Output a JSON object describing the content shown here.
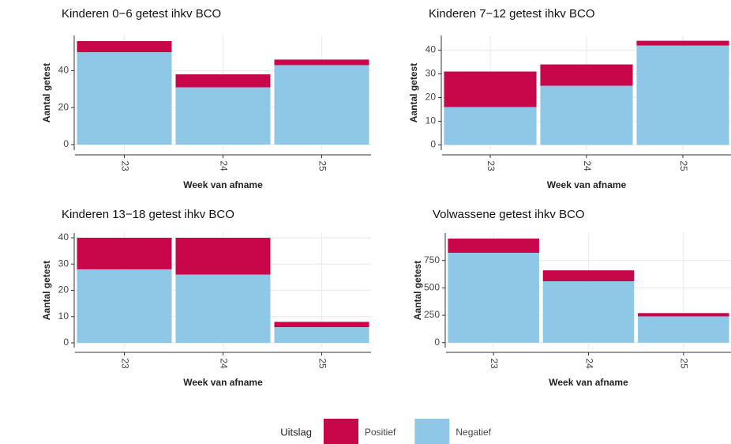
{
  "chart_data": [
    {
      "type": "bar",
      "stacked": true,
      "title": "Kinderen 0−6 getest ihkv BCO",
      "x_label": "Week van afname",
      "y_label": "Aantal getest",
      "categories": [
        "23",
        "24",
        "25"
      ],
      "series": [
        {
          "name": "Positief",
          "color": "#c8074a",
          "values": [
            6,
            7,
            3
          ]
        },
        {
          "name": "Negatief",
          "color": "#8ec8e6",
          "values": [
            50,
            31,
            43
          ]
        }
      ],
      "ylim": [
        -3,
        59
      ],
      "yticks": [
        0,
        20,
        40
      ],
      "grid": true
    },
    {
      "type": "bar",
      "stacked": true,
      "title": "Kinderen 7−12 getest ihkv BCO",
      "x_label": "Week van afname",
      "y_label": "Aantal getest",
      "categories": [
        "23",
        "24",
        "25"
      ],
      "series": [
        {
          "name": "Positief",
          "color": "#c8074a",
          "values": [
            15,
            9,
            2
          ]
        },
        {
          "name": "Negatief",
          "color": "#8ec8e6",
          "values": [
            16,
            25,
            42
          ]
        }
      ],
      "ylim": [
        -2.2,
        46.2
      ],
      "yticks": [
        0,
        10,
        20,
        30,
        40
      ],
      "grid": true
    },
    {
      "type": "bar",
      "stacked": true,
      "title": "Kinderen 13−18 getest ihkv BCO",
      "x_label": "Week van afname",
      "y_label": "Aantal getest",
      "categories": [
        "23",
        "24",
        "25"
      ],
      "series": [
        {
          "name": "Positief",
          "color": "#c8074a",
          "values": [
            12,
            14,
            2
          ]
        },
        {
          "name": "Negatief",
          "color": "#8ec8e6",
          "values": [
            28,
            26,
            6
          ]
        }
      ],
      "ylim": [
        -1.8,
        41.8
      ],
      "yticks": [
        0,
        10,
        20,
        30,
        40
      ],
      "grid": true
    },
    {
      "type": "bar",
      "stacked": true,
      "title": "Volwassene getest ihkv BCO",
      "x_label": "Week van afname",
      "y_label": "Aantal getest",
      "categories": [
        "23",
        "24",
        "25"
      ],
      "series": [
        {
          "name": "Positief",
          "color": "#c8074a",
          "values": [
            130,
            100,
            30
          ]
        },
        {
          "name": "Negatief",
          "color": "#8ec8e6",
          "values": [
            820,
            560,
            240
          ]
        }
      ],
      "ylim": [
        -45,
        1000
      ],
      "yticks": [
        0,
        250,
        500,
        750
      ],
      "grid": true
    }
  ],
  "legend_title": "Uitslag"
}
